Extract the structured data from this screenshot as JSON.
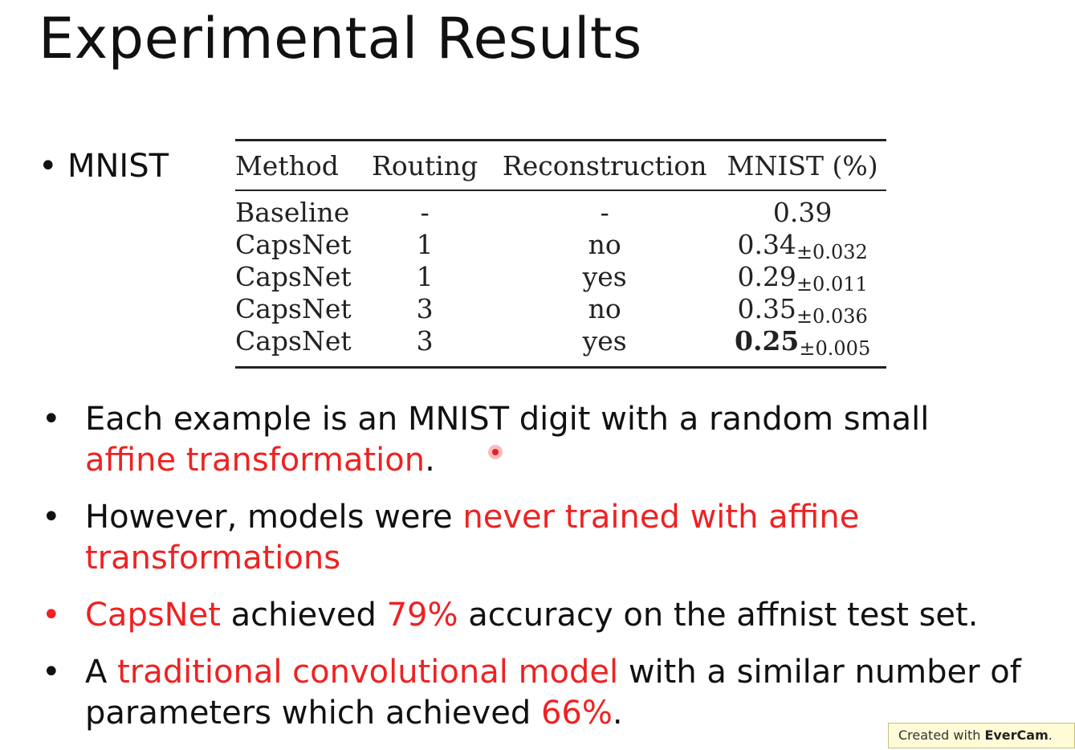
{
  "title": "Experimental Results",
  "section_bullet": "MNIST",
  "table": {
    "headers": [
      "Method",
      "Routing",
      "Reconstruction",
      "MNIST (%)"
    ],
    "rows": [
      {
        "method": "Baseline",
        "routing": "-",
        "reconstruction": "-",
        "mnist": "0.39",
        "std": ""
      },
      {
        "method": "CapsNet",
        "routing": "1",
        "reconstruction": "no",
        "mnist": "0.34",
        "std": "±0.032"
      },
      {
        "method": "CapsNet",
        "routing": "1",
        "reconstruction": "yes",
        "mnist": "0.29",
        "std": "±0.011"
      },
      {
        "method": "CapsNet",
        "routing": "3",
        "reconstruction": "no",
        "mnist": "0.35",
        "std": "±0.036"
      },
      {
        "method": "CapsNet",
        "routing": "3",
        "reconstruction": "yes",
        "mnist": "0.25",
        "std": "±0.005"
      }
    ]
  },
  "bullets": {
    "b1": {
      "t1": "Each example is an MNIST digit with a random small ",
      "red1": "affine transformation",
      "t2": "."
    },
    "b2": {
      "t1": "However, models were ",
      "red1": "never trained with affine transformations"
    },
    "b3": {
      "red1": "CapsNet",
      "t1": " achieved ",
      "red2": "79%",
      "t2": " accuracy on the affnist test set."
    },
    "b4": {
      "t1": "A ",
      "red1": "traditional convolutional model",
      "t2": " with a similar number of parameters which achieved ",
      "red2": "66%",
      "t3": "."
    }
  },
  "bullet_marker": "•",
  "watermark": {
    "prefix": "Created with ",
    "brand": "EverCam",
    "suffix": "."
  },
  "colors": {
    "accent_red": "#ee2222",
    "text": "#111111",
    "background": "#ffffff"
  }
}
